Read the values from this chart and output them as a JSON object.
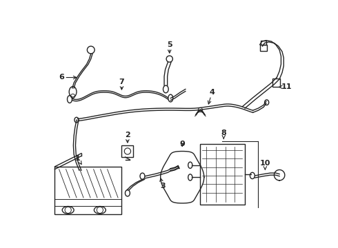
{
  "background_color": "#ffffff",
  "line_color": "#222222",
  "line_width": 1.0,
  "fig_width": 4.9,
  "fig_height": 3.6,
  "dpi": 100
}
